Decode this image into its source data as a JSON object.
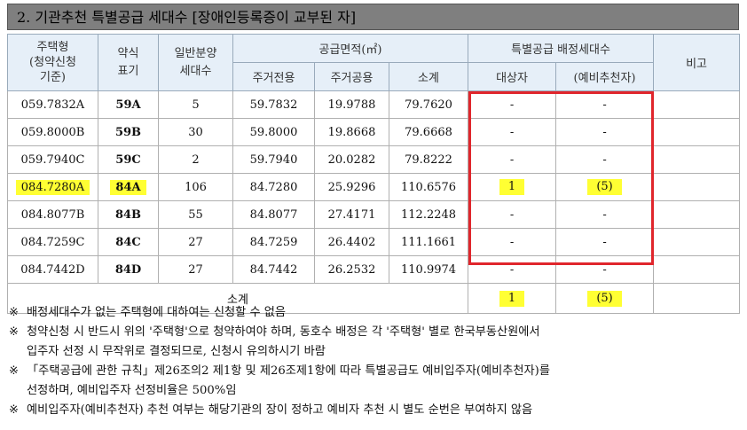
{
  "title": "2. 기관추천 특별공급 세대수 [장애인등록증이 교부된 자]",
  "header": {
    "col_type": [
      "주택형",
      "(청약신청",
      "기준)"
    ],
    "col_abbr": [
      "약식",
      "표기"
    ],
    "col_general": [
      "일반분양",
      "세대수"
    ],
    "col_area": "공급면적(㎡)",
    "col_area_private": "주거전용",
    "col_area_common": "주거공용",
    "col_area_subtotal": "소계",
    "col_special": "특별공급 배정세대수",
    "col_target": "대상자",
    "col_reserve": "(예비추천자)",
    "col_note": "비고"
  },
  "rows": [
    {
      "type": "059.7832A",
      "abbr": "59A",
      "general": "5",
      "private": "59.7832",
      "common": "19.9788",
      "subtotal": "79.7620",
      "target": "-",
      "reserve": "-",
      "highlight": false
    },
    {
      "type": "059.8000B",
      "abbr": "59B",
      "general": "30",
      "private": "59.8000",
      "common": "19.8668",
      "subtotal": "79.6668",
      "target": "-",
      "reserve": "-",
      "highlight": false
    },
    {
      "type": "059.7940C",
      "abbr": "59C",
      "general": "2",
      "private": "59.7940",
      "common": "20.0282",
      "subtotal": "79.8222",
      "target": "-",
      "reserve": "-",
      "highlight": false
    },
    {
      "type": "084.7280A",
      "abbr": "84A",
      "general": "106",
      "private": "84.7280",
      "common": "25.9296",
      "subtotal": "110.6576",
      "target": "1",
      "reserve": "(5)",
      "highlight": true
    },
    {
      "type": "084.8077B",
      "abbr": "84B",
      "general": "55",
      "private": "84.8077",
      "common": "27.4171",
      "subtotal": "112.2248",
      "target": "-",
      "reserve": "-",
      "highlight": false
    },
    {
      "type": "084.7259C",
      "abbr": "84C",
      "general": "27",
      "private": "84.7259",
      "common": "26.4402",
      "subtotal": "111.1661",
      "target": "-",
      "reserve": "-",
      "highlight": false
    },
    {
      "type": "084.7442D",
      "abbr": "84D",
      "general": "27",
      "private": "84.7442",
      "common": "26.2532",
      "subtotal": "110.9974",
      "target": "-",
      "reserve": "-",
      "highlight": false
    }
  ],
  "subtotal": {
    "label": "소계",
    "target": "1",
    "reserve": "(5)"
  },
  "notes": [
    {
      "mark": "※",
      "lines": [
        "배정세대수가 없는 주택형에 대하여는 신청할 수 없음"
      ]
    },
    {
      "mark": "※",
      "lines": [
        "청약신청 시 반드시 위의 '주택형'으로 청약하여야 하며, 동호수 배정은 각 '주택형' 별로 한국부동산원에서",
        "입주자 선정 시 무작위로 결정되므로, 신청시 유의하시기 바람"
      ]
    },
    {
      "mark": "※",
      "lines": [
        "「주택공급에 관한 규칙」제26조의2 제1항 및 제26조제1항에 따라 특별공급도 예비입주자(예비추천자)를",
        "선정하며, 예비입주자 선정비율은 500%임"
      ]
    },
    {
      "mark": "※",
      "lines": [
        "예비입주자(예비추천자) 추천 여부는 해당기관의 장이 정하고 예비자 추천 시 별도 순번은 부여하지 않음"
      ]
    }
  ]
}
